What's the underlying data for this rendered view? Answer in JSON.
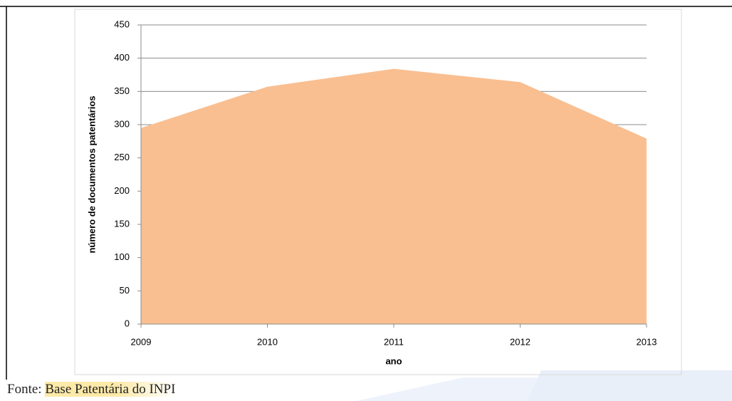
{
  "chart_data": {
    "type": "area",
    "y_label": "número de documentos patentários",
    "x_label": "ano",
    "categories": [
      "2009",
      "2010",
      "2011",
      "2012",
      "2013"
    ],
    "values": [
      295,
      357,
      384,
      364,
      279
    ],
    "color": "#f9bf91",
    "ylim": [
      0,
      450
    ],
    "yticks": [
      0,
      50,
      100,
      150,
      200,
      250,
      300,
      350,
      400,
      450
    ],
    "grid": true
  },
  "caption": {
    "prefix": "Fonte: ",
    "source": "Base Patentária do INPI"
  }
}
